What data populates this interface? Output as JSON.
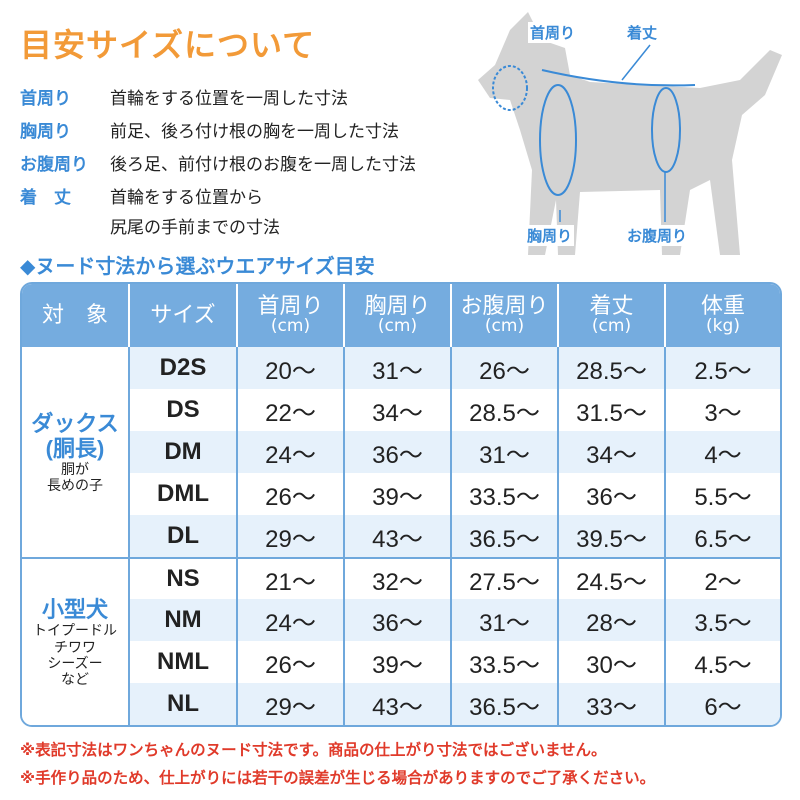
{
  "title": "目安サイズについて",
  "definitions": [
    {
      "key": "首周り",
      "value": "首輪をする位置を一周した寸法"
    },
    {
      "key": "胸周り",
      "value": "前足、後ろ付け根の胸を一周した寸法"
    },
    {
      "key": "お腹周り",
      "value": "後ろ足、前付け根のお腹を一周した寸法"
    },
    {
      "key": "着　丈",
      "value": "首輪をする位置から",
      "value2": "尻尾の手前までの寸法"
    }
  ],
  "diagram": {
    "labels": {
      "neck": "首周り",
      "length": "着丈",
      "chest": "胸周り",
      "belly": "お腹周り"
    },
    "silhouette_color": "#d3d3d3",
    "accent": "#3a8ad6"
  },
  "subtitle": "◆ヌード寸法から選ぶウエアサイズ目安",
  "table": {
    "headers": [
      {
        "label": "対　象"
      },
      {
        "label": "サイズ"
      },
      {
        "label": "首周り",
        "unit": "(cm)"
      },
      {
        "label": "胸周り",
        "unit": "(cm)"
      },
      {
        "label": "お腹周り",
        "unit": "(cm)"
      },
      {
        "label": "着丈",
        "unit": "(cm)"
      },
      {
        "label": "体重",
        "unit": "(kg)"
      }
    ],
    "groups": [
      {
        "name": "ダックス",
        "name2": "(胴長)",
        "desc": [
          "胴が",
          "長めの子"
        ],
        "rows": [
          [
            "D2S",
            "20〜",
            "31〜",
            "26〜",
            "28.5〜",
            "2.5〜"
          ],
          [
            "DS",
            "22〜",
            "34〜",
            "28.5〜",
            "31.5〜",
            "3〜"
          ],
          [
            "DM",
            "24〜",
            "36〜",
            "31〜",
            "34〜",
            "4〜"
          ],
          [
            "DML",
            "26〜",
            "39〜",
            "33.5〜",
            "36〜",
            "5.5〜"
          ],
          [
            "DL",
            "29〜",
            "43〜",
            "36.5〜",
            "39.5〜",
            "6.5〜"
          ]
        ]
      },
      {
        "name": "小型犬",
        "desc": [
          "トイプードル",
          "チワワ",
          "シーズー",
          "など"
        ],
        "rows": [
          [
            "NS",
            "21〜",
            "32〜",
            "27.5〜",
            "24.5〜",
            "2〜"
          ],
          [
            "NM",
            "24〜",
            "36〜",
            "31〜",
            "28〜",
            "3.5〜"
          ],
          [
            "NML",
            "26〜",
            "39〜",
            "33.5〜",
            "30〜",
            "4.5〜"
          ],
          [
            "NL",
            "29〜",
            "43〜",
            "36.5〜",
            "33〜",
            "6〜"
          ]
        ]
      }
    ]
  },
  "notes": [
    "※表記寸法はワンちゃんのヌード寸法です。商品の仕上がり寸法ではございません。",
    "※手作り品のため、仕上がりには若干の誤差が生じる場合がありますのでご了承ください。"
  ],
  "colors": {
    "title": "#f29a38",
    "accent": "#3a8ad6",
    "header": "#75acdf",
    "alt_row": "#e6f1fb",
    "note": "#e03a2a"
  }
}
